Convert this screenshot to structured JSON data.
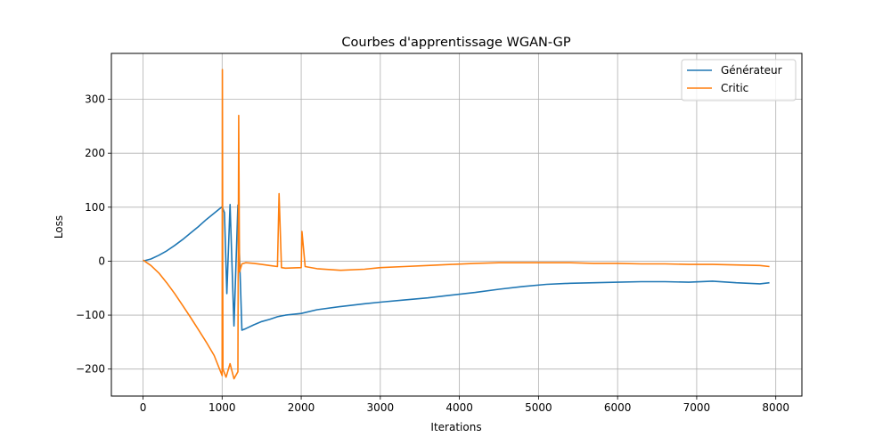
{
  "chart_data": {
    "type": "line",
    "title": "Courbes d'apprentissage WGAN-GP",
    "xlabel": "Iterations",
    "ylabel": "Loss",
    "xlim": [
      -400,
      8330
    ],
    "ylim": [
      -250,
      385
    ],
    "xticks": [
      0,
      1000,
      2000,
      3000,
      4000,
      5000,
      6000,
      7000,
      8000
    ],
    "yticks": [
      -200,
      -100,
      0,
      100,
      200,
      300
    ],
    "grid": true,
    "legend_position": "top-right",
    "series": [
      {
        "name": "Générateur",
        "color": "#1f77b4",
        "x": [
          0,
          100,
          200,
          300,
          400,
          500,
          600,
          700,
          800,
          900,
          1000,
          1030,
          1060,
          1100,
          1150,
          1200,
          1250,
          1300,
          1400,
          1500,
          1600,
          1700,
          1800,
          2000,
          2200,
          2500,
          2800,
          3000,
          3300,
          3600,
          3900,
          4200,
          4500,
          4800,
          5100,
          5400,
          5700,
          6000,
          6300,
          6600,
          6900,
          7200,
          7500,
          7800,
          7920
        ],
        "y": [
          0,
          4,
          11,
          19,
          29,
          40,
          52,
          64,
          77,
          89,
          101,
          90,
          -60,
          105,
          -120,
          104,
          -128,
          -125,
          -118,
          -112,
          -108,
          -103,
          -100,
          -97,
          -90,
          -84,
          -79,
          -76,
          -72,
          -68,
          -63,
          -58,
          -52,
          -47,
          -43,
          -41,
          -40,
          -39,
          -38,
          -38,
          -39,
          -37,
          -40,
          -42,
          -40
        ]
      },
      {
        "name": "Critic",
        "color": "#ff7f0e",
        "x": [
          0,
          100,
          200,
          300,
          400,
          500,
          600,
          700,
          800,
          900,
          1000,
          1003,
          1010,
          1050,
          1100,
          1150,
          1200,
          1210,
          1220,
          1250,
          1300,
          1400,
          1500,
          1600,
          1700,
          1720,
          1750,
          1800,
          2000,
          2010,
          2050,
          2200,
          2500,
          2800,
          3000,
          3300,
          3600,
          3900,
          4200,
          4500,
          4800,
          5100,
          5400,
          5700,
          6000,
          6300,
          6600,
          6900,
          7200,
          7500,
          7800,
          7920
        ],
        "y": [
          2,
          -8,
          -22,
          -40,
          -60,
          -82,
          -104,
          -127,
          -150,
          -175,
          -212,
          355,
          -200,
          -215,
          -190,
          -218,
          -205,
          270,
          -20,
          -5,
          -3,
          -4,
          -6,
          -8,
          -10,
          125,
          -12,
          -13,
          -12,
          55,
          -10,
          -14,
          -17,
          -15,
          -12,
          -10,
          -8,
          -6,
          -4,
          -3,
          -3,
          -3,
          -3,
          -4,
          -4,
          -5,
          -5,
          -6,
          -6,
          -7,
          -8,
          -10
        ]
      }
    ]
  }
}
